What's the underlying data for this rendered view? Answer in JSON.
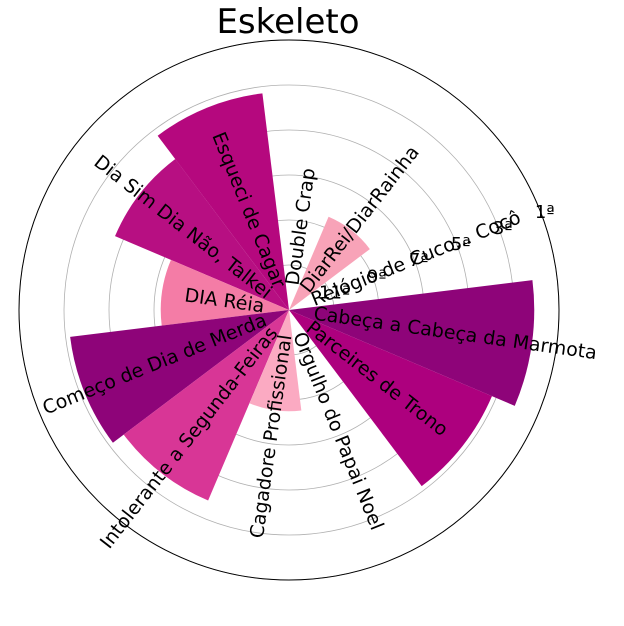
{
  "chart_data": {
    "type": "polar-bar",
    "title": "Eskeleto",
    "radial_tick_labels": [
      "11ª",
      "9ª",
      "7ª",
      "5ª",
      "3ª",
      "1ª"
    ],
    "radial_tick_values": [
      11,
      9,
      7,
      5,
      3,
      1
    ],
    "rlim": [
      13,
      1
    ],
    "grid": true,
    "categories": [
      "Cabeça a Cabeça da Marmota",
      "Relógio de Cuco... Cocô",
      "DiarRei/DiarRainha",
      "Double Crap",
      "Esqueci de Cagar",
      "Dia Sim Dia Não, Talkei",
      "DIA Réia",
      "Começo de Dia de Merda",
      "Intolerante a Segunda-Feiras",
      "Cagadore Profissional",
      "Orgulho do Papai Noel",
      "Parceires de Trono"
    ],
    "values": [
      2.1,
      13,
      8.5,
      13,
      3.3,
      4.6,
      7.3,
      3.2,
      3.8,
      8.5,
      13,
      3.2
    ],
    "colors": [
      "#8e0479",
      "#ffffff",
      "#f8a3b8",
      "#ffffff",
      "#b5087e",
      "#b70f82",
      "#f47ca6",
      "#8e0479",
      "#d83696",
      "#fbaac2",
      "#ffffff",
      "#ad007e"
    ]
  }
}
